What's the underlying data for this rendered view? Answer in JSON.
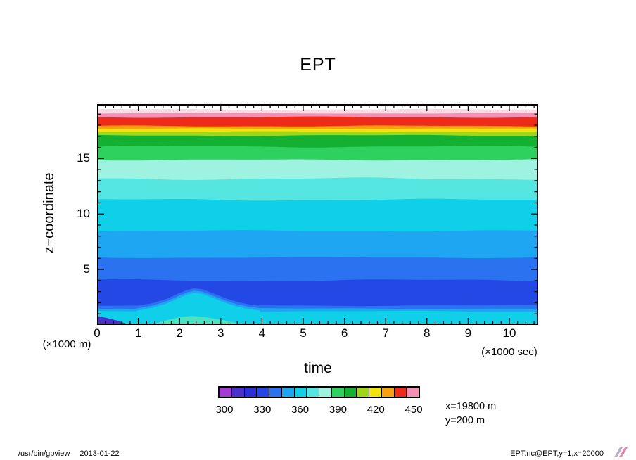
{
  "chart_data": {
    "type": "filled-contour",
    "title": "EPT",
    "xlabel": "time",
    "x_unit": "(×1000 sec)",
    "ylabel": "z−coordinate",
    "y_unit": "(×1000 m)",
    "xlim": [
      0,
      10.7
    ],
    "ylim": [
      0,
      19.9
    ],
    "xticks": [
      0,
      1,
      2,
      3,
      4,
      5,
      6,
      7,
      8,
      9,
      10
    ],
    "x_minor_step": 0.2,
    "yticks": [
      5,
      10,
      15
    ],
    "y_minor_step": 1,
    "annotations": [
      "x=19800 m",
      "y=200 m"
    ],
    "bands": [
      {
        "value": 360,
        "z_from": 0,
        "z_to": 1.25,
        "color": "#0fd0e8"
      },
      {
        "value": 350,
        "z_from": 1.25,
        "z_to": 1.5,
        "color": "#1fa6f2"
      },
      {
        "value": 340,
        "z_from": 1.5,
        "z_to": 1.78,
        "color": "#2a72f0"
      },
      {
        "value": 330,
        "z_from": 1.78,
        "z_to": 4.05,
        "color": "#2448e6"
      },
      {
        "value": 340,
        "z_from": 4.05,
        "z_to": 6.1,
        "color": "#2a72f0"
      },
      {
        "value": 350,
        "z_from": 6.1,
        "z_to": 8.5,
        "color": "#1fa6f2"
      },
      {
        "value": 360,
        "z_from": 8.5,
        "z_to": 11.3,
        "color": "#0fd0e8"
      },
      {
        "value": 370,
        "z_from": 11.3,
        "z_to": 13.2,
        "color": "#55e6e2"
      },
      {
        "value": 380,
        "z_from": 13.2,
        "z_to": 14.9,
        "color": "#9df2e0"
      },
      {
        "value": 390,
        "z_from": 14.9,
        "z_to": 16.1,
        "color": "#2ed05e"
      },
      {
        "value": 400,
        "z_from": 16.1,
        "z_to": 17.1,
        "color": "#13b031"
      },
      {
        "value": 410,
        "z_from": 17.1,
        "z_to": 17.45,
        "color": "#9ed618"
      },
      {
        "value": 420,
        "z_from": 17.45,
        "z_to": 17.7,
        "color": "#f2e20e"
      },
      {
        "value": 430,
        "z_from": 17.7,
        "z_to": 17.95,
        "color": "#f8a010"
      },
      {
        "value": 440,
        "z_from": 17.95,
        "z_to": 18.75,
        "color": "#ee2a18"
      },
      {
        "value": 450,
        "z_from": 18.75,
        "z_to": 19.1,
        "color": "#f590b4"
      },
      {
        "value": ">455",
        "z_from": 19.1,
        "z_to": 19.45,
        "color": "#fcd9e6"
      },
      {
        "value": ">455",
        "z_from": 19.45,
        "z_to": 19.9,
        "color": "#ffffff"
      }
    ],
    "features": [
      {
        "name": "low-level-plume",
        "type": "ringed-mound",
        "crest": [
          [
            0.95,
            1.28
          ],
          [
            1.35,
            1.55
          ],
          [
            1.7,
            1.95
          ],
          [
            2.0,
            2.45
          ],
          [
            2.2,
            2.75
          ],
          [
            2.35,
            2.88
          ],
          [
            2.55,
            2.8
          ],
          [
            2.8,
            2.45
          ],
          [
            3.1,
            2.0
          ],
          [
            3.4,
            1.65
          ],
          [
            3.7,
            1.42
          ],
          [
            3.95,
            1.3
          ]
        ],
        "rings": [
          {
            "value": 340,
            "dz": 0.42,
            "color": "#2a72f0"
          },
          {
            "value": 350,
            "dz": 0.2,
            "color": "#1fa6f2"
          },
          {
            "value": 360,
            "dz": 0,
            "color": "#0fd0e8"
          }
        ]
      },
      {
        "name": "surface-warm-patch",
        "type": "polygon",
        "value": 370,
        "color": "#4ae4c2",
        "points": [
          [
            1.35,
            0
          ],
          [
            1.45,
            0.18
          ],
          [
            1.75,
            0.48
          ],
          [
            2.05,
            0.72
          ],
          [
            2.3,
            0.82
          ],
          [
            2.6,
            0.72
          ],
          [
            2.95,
            0.5
          ],
          [
            3.3,
            0.25
          ],
          [
            3.55,
            0.08
          ],
          [
            3.6,
            0
          ]
        ]
      },
      {
        "name": "corner-cool-patch",
        "type": "polygon",
        "value": 310,
        "color": "#4b31cc",
        "points": [
          [
            0,
            0.8
          ],
          [
            0.25,
            0.62
          ],
          [
            0.5,
            0.38
          ],
          [
            0.68,
            0.15
          ],
          [
            0.75,
            0
          ],
          [
            0,
            0
          ]
        ]
      }
    ],
    "colorbar": {
      "min": 295,
      "max": 455,
      "step": 10,
      "cell_mid_values": [
        300,
        310,
        320,
        330,
        340,
        350,
        360,
        370,
        380,
        390,
        400,
        410,
        420,
        430,
        440,
        450
      ],
      "colors": [
        "#a43cd4",
        "#4b31cc",
        "#2b30d9",
        "#2448e6",
        "#2a72f0",
        "#1fa6f2",
        "#0fd0e8",
        "#55e6e2",
        "#9df2e0",
        "#2ed05e",
        "#13b031",
        "#9ed618",
        "#f2e20e",
        "#f8a010",
        "#ee2a18",
        "#f590b4"
      ],
      "tick_labels": [
        "300",
        "330",
        "360",
        "390",
        "420",
        "450"
      ]
    }
  },
  "footer": {
    "program": "/usr/bin/gpview",
    "date": "2013-01-22",
    "dataset": "EPT.nc@EPT,y=1,x=20000"
  }
}
